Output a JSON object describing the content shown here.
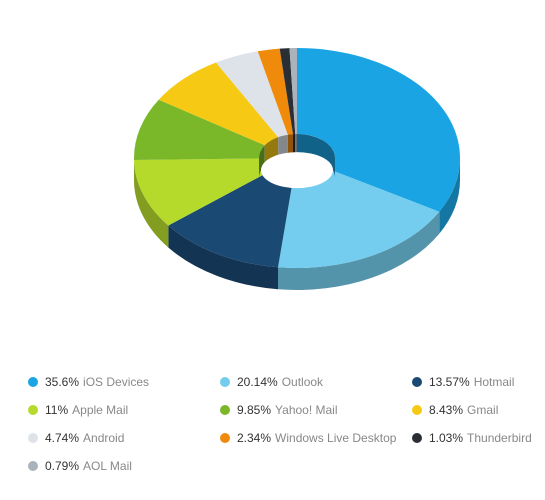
{
  "chart_data": {
    "type": "pie",
    "style": "3d-donut",
    "series": [
      {
        "name": "iOS Devices",
        "value": 35.6,
        "label": "35.6%",
        "color": "#1aa4e3"
      },
      {
        "name": "Outlook",
        "value": 20.14,
        "label": "20.14%",
        "color": "#74cdee"
      },
      {
        "name": "Hotmail",
        "value": 13.57,
        "label": "13.57%",
        "color": "#1a4a73"
      },
      {
        "name": "Apple Mail",
        "value": 11,
        "label": "11%",
        "color": "#b5da2c"
      },
      {
        "name": "Yahoo! Mail",
        "value": 9.85,
        "label": "9.85%",
        "color": "#7ab82a"
      },
      {
        "name": "Gmail",
        "value": 8.43,
        "label": "8.43%",
        "color": "#f6c915"
      },
      {
        "name": "Android",
        "value": 4.74,
        "label": "4.74%",
        "color": "#dde3e8"
      },
      {
        "name": "Windows Live Desktop",
        "value": 2.34,
        "label": "2.34%",
        "color": "#f08a0b"
      },
      {
        "name": "Thunderbird",
        "value": 1.03,
        "label": "1.03%",
        "color": "#2a2f36"
      },
      {
        "name": "AOL Mail",
        "value": 0.79,
        "label": "0.79%",
        "color": "#aab2ba"
      }
    ],
    "legend": {
      "position": "bottom",
      "columns": 3
    }
  }
}
